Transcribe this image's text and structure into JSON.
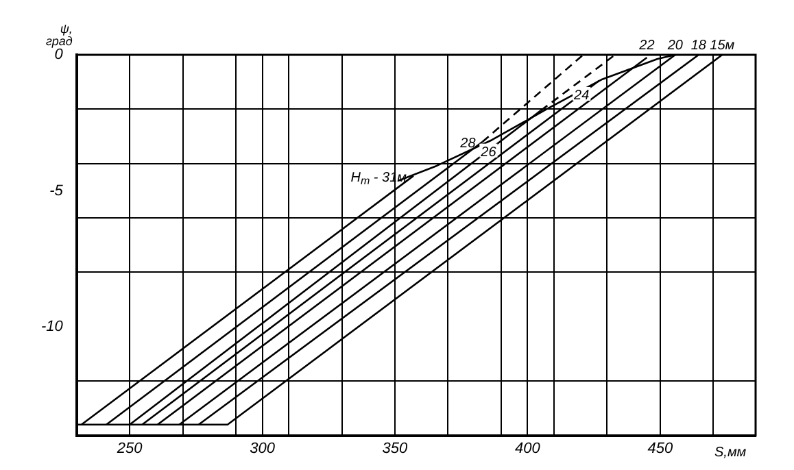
{
  "chart_data": {
    "type": "line",
    "xlabel": "S,мм",
    "ylabel": "ψ, град",
    "xlim": [
      230,
      486
    ],
    "ylim": [
      -14,
      0
    ],
    "xticks": [
      250,
      {
        "value": 270,
        "label": null
      },
      {
        "value": 290,
        "label": null
      },
      300,
      {
        "value": 310,
        "label": null
      },
      {
        "value": 330,
        "label": null
      },
      350,
      {
        "value": 370,
        "label": null
      },
      {
        "value": 390,
        "label": null
      },
      400,
      {
        "value": 410,
        "label": null
      },
      {
        "value": 430,
        "label": null
      },
      450,
      {
        "value": 470,
        "label": null
      }
    ],
    "yticks": [
      0,
      {
        "value": -2,
        "label": null
      },
      {
        "value": -4,
        "label": null
      },
      -5,
      {
        "value": -6,
        "label": null
      },
      {
        "value": -8,
        "label": null
      },
      -10,
      {
        "value": -12,
        "label": null
      }
    ],
    "grid": true,
    "marker": "none",
    "line_style": "solid",
    "series": [
      {
        "name": "H$_{т}$ - 31м",
        "color": "#000000",
        "x": [
          231.8,
          357
        ],
        "values": [
          -13.6,
          -4.45
        ]
      },
      {
        "name": "28",
        "color": "#000000",
        "x": [
          241.2,
          383
        ],
        "values": [
          -13.6,
          -3.2
        ]
      },
      {
        "name": "26",
        "color": "#000000",
        "x": [
          250,
          405
        ],
        "values": [
          -13.6,
          -2.05
        ]
      },
      {
        "name": "24",
        "color": "#000000",
        "x": [
          254.7,
          427
        ],
        "values": [
          -13.6,
          -0.95
        ]
      },
      {
        "name": "22",
        "color": "#000000",
        "x": [
          260.5,
          445
        ],
        "values": [
          -13.6,
          -0.1
        ]
      },
      {
        "name": "20",
        "color": "#000000",
        "x": [
          268.7,
          455.7
        ],
        "values": [
          -13.6,
          0
        ]
      },
      {
        "name": "18",
        "color": "#000000",
        "x": [
          276,
          464.5
        ],
        "values": [
          -13.6,
          0
        ]
      },
      {
        "name": "15м",
        "color": "#000000",
        "x": [
          230,
          286.9,
          473.4
        ],
        "values": [
          -13.6,
          -13.6,
          0
        ]
      },
      {
        "color": "#000000",
        "x": [
          351.3,
          365.8,
          386.6,
          407.4,
          428.2,
          449,
          455.7
        ],
        "values": [
          -4.63,
          -4.08,
          -3.13,
          -1.99,
          -0.9,
          -0.15,
          0
        ]
      },
      {
        "color": "#000000",
        "line_style": "dashed",
        "x": [
          383,
          421
        ],
        "values": [
          -3.2,
          0
        ]
      },
      {
        "color": "#000000",
        "line_style": "dashed",
        "x": [
          405,
          433
        ],
        "values": [
          -2.05,
          0
        ]
      }
    ]
  }
}
